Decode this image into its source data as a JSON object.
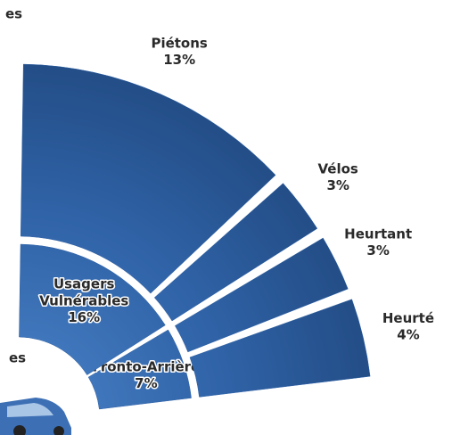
{
  "chart_data": {
    "type": "sunburst",
    "annotations": [
      "es",
      "es"
    ],
    "color": "#2f62a6",
    "rings": [
      {
        "categories": [
          "Fronto-Arrière",
          "Usagers Vulnérables"
        ],
        "values": [
          7,
          16
        ],
        "value_labels": [
          "7%",
          "16%"
        ]
      },
      {
        "categories": [
          "Heurté",
          "Heurtant",
          "Vélos",
          "Piétons"
        ],
        "values": [
          4,
          3,
          3,
          13
        ],
        "value_labels": [
          "4%",
          "3%",
          "3%",
          "13%"
        ]
      }
    ]
  }
}
